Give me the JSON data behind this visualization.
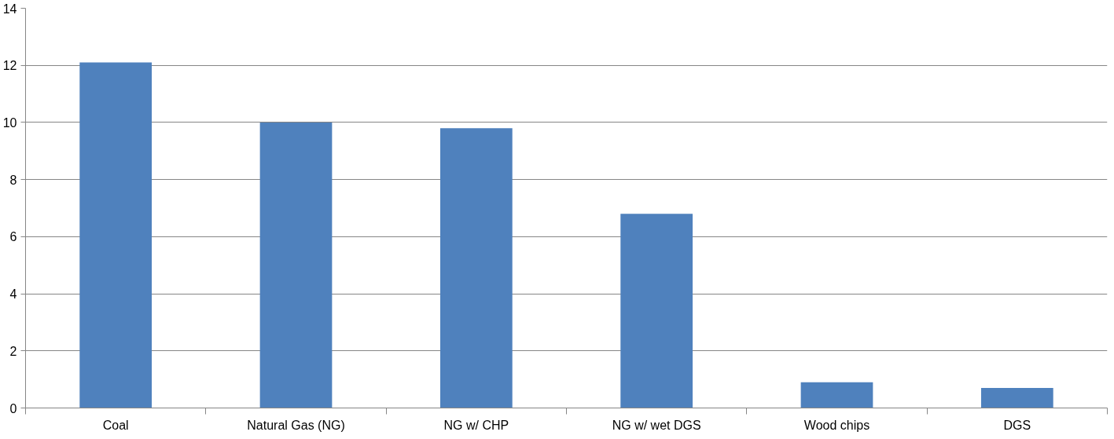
{
  "chart_data": {
    "type": "bar",
    "categories": [
      "Coal",
      "Natural Gas (NG)",
      "NG w/ CHP",
      "NG w/ wet DGS",
      "Wood chips",
      "DGS"
    ],
    "values": [
      12.1,
      10.0,
      9.8,
      6.8,
      0.9,
      0.7
    ],
    "color": "#4f81bd",
    "ylim": [
      0,
      14
    ],
    "yticks": [
      0,
      2,
      4,
      6,
      8,
      10,
      12,
      14
    ],
    "grid": "y"
  }
}
